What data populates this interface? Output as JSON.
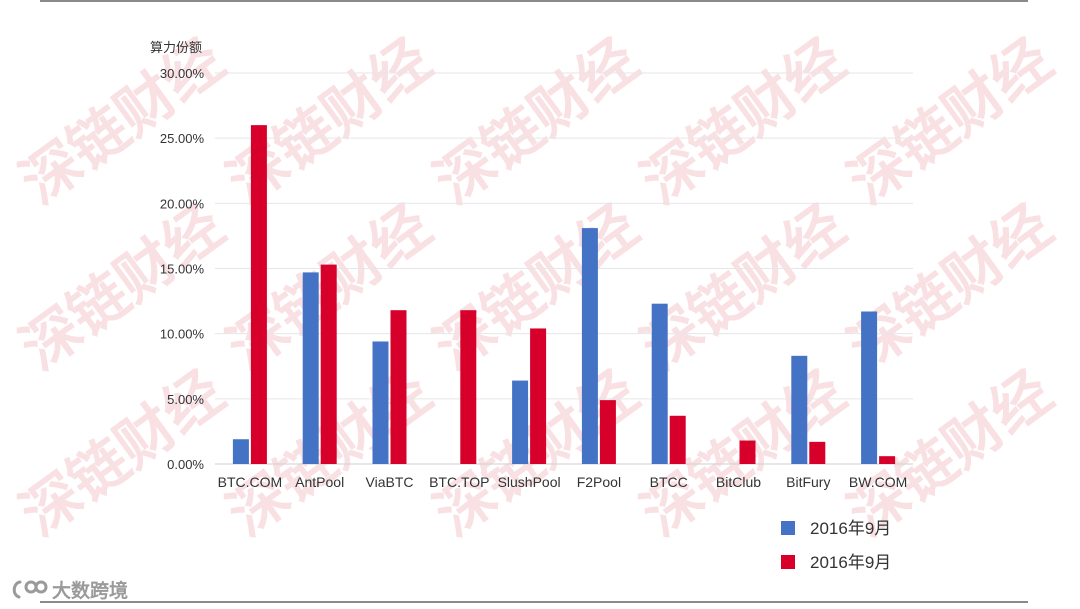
{
  "chart_data": {
    "type": "bar",
    "ylabel": "算力份额",
    "ylim": [
      0,
      30
    ],
    "y_ticks": [
      "0.00%",
      "5.00%",
      "10.00%",
      "15.00%",
      "20.00%",
      "25.00%",
      "30.00%"
    ],
    "grid": true,
    "legend_position": "bottom-right",
    "categories": [
      "BTC.COM",
      "AntPool",
      "ViaBTC",
      "BTC.TOP",
      "SlushPool",
      "F2Pool",
      "BTCC",
      "BitClub",
      "BitFury",
      "BW.COM"
    ],
    "series": [
      {
        "name": "2016年9月",
        "color": "#4472c4",
        "values": [
          1.9,
          14.7,
          9.4,
          0,
          6.4,
          18.1,
          12.3,
          0,
          8.3,
          11.7
        ]
      },
      {
        "name": "2016年9月",
        "color": "#d6002a",
        "values": [
          26.0,
          15.3,
          11.8,
          11.8,
          10.4,
          4.9,
          3.7,
          1.8,
          1.7,
          0.6
        ]
      }
    ]
  },
  "watermark": {
    "text": "深链财经",
    "color": "#f3c6cc"
  },
  "brand": {
    "text": "大数跨境",
    "icon": "brand-logo-icon"
  }
}
